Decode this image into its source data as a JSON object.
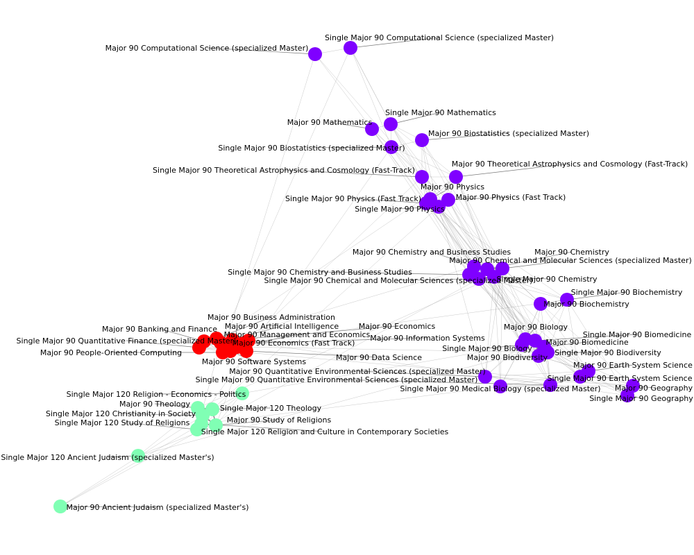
{
  "chart_data": {
    "type": "network",
    "colors": {
      "purple": "#7f00ff",
      "red": "#ff0000",
      "green": "#80ffb4"
    },
    "clusters": [
      {
        "color": "purple",
        "nodes": [
          "Major 90 Computational Science (specialized Master)",
          "Single Major 90 Computational Science (specialized Master)",
          "Single Major 90 Mathematics",
          "Major 90 Mathematics",
          "Major 90 Biostatistics (specialized Master)",
          "Single Major 90 Biostatistics (specialized Master)",
          "Single Major 90 Theoretical Astrophysics and Cosmology (Fast-Track)",
          "Major 90 Theoretical Astrophysics and Cosmology (Fast-Track)",
          "Major 90 Physics",
          "Single Major 90 Physics (Fast Track)",
          "Major 90 Physics (Fast Track)",
          "Single Major 90 Physics",
          "Major 90 Chemistry and Business Studies",
          "Major 90 Chemistry",
          "Major 90 Chemical and Molecular Sciences (specialized Master)",
          "Single Major 90 Chemistry and Business Studies",
          "Single Major 90 Chemical and Molecular Sciences (specialized Master)",
          "Single Major 90 Chemistry",
          "Single Major 90 Biochemistry",
          "Major 90 Biochemistry",
          "Major 90 Biology",
          "Single Major 90 Biomedicine",
          "Major 90 Biomedicine",
          "Single Major 90 Biology",
          "Single Major 90 Biodiversity",
          "Major 90 Biodiversity",
          "Major 90 Earth System Science",
          "Single Major 90 Earth System Science",
          "Single Major 90 Medical Biology (specialized Master)",
          "Major 90 Geography",
          "Single Major 90 Geography",
          "Major 90 Quantitative Environmental Sciences (specialized Master)",
          "Single Major 90 Quantitative Environmental Sciences (specialized Master)"
        ]
      },
      {
        "color": "red",
        "nodes": [
          "Major 90 Business Administration",
          "Major 90 Artificial Intelligence",
          "Major 90 Banking and Finance",
          "Major 90 Economics",
          "Major 90 Management and Economics",
          "Major 90 Information Systems",
          "Single Major 90 Quantitative Finance (specialized Master)",
          "Major 90 Economics (Fast Track)",
          "Major 90 People-Oriented Computing",
          "Major 90 Data Science",
          "Major 90 Software Systems"
        ]
      },
      {
        "color": "green",
        "nodes": [
          "Single Major 120 Religion - Economics - Politics",
          "Major 90 Theology",
          "Single Major 120 Theology",
          "Single Major 120 Christianity in Society",
          "Major 90 Study of Religions",
          "Single Major 120 Study of Religions",
          "Single Major 120 Religion and Culture in Contemporary Societies",
          "Single Major 120 Ancient Judaism (specialized Master's)",
          "Major 90 Ancient Judaism (specialized Master's)"
        ]
      }
    ]
  }
}
